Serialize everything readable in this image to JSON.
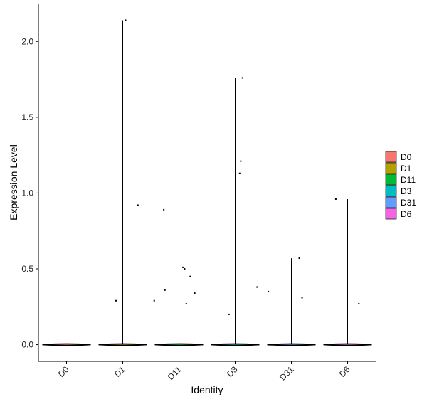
{
  "chart_data": {
    "type": "violin",
    "xlabel": "Identity",
    "ylabel": "Expression Level",
    "categories": [
      "D0",
      "D1",
      "D11",
      "D3",
      "D31",
      "D6"
    ],
    "yticks": [
      0.0,
      0.5,
      1.0,
      1.5,
      2.0
    ],
    "ytick_labels": [
      "0.0",
      "0.5",
      "1.0",
      "1.5",
      "2.0"
    ],
    "ylim": [
      -0.11,
      2.25
    ],
    "grid": false,
    "legend_position": "right",
    "colors": {
      "D0": "#F8766D",
      "D1": "#B79F00",
      "D11": "#00BA38",
      "D3": "#00BFC4",
      "D31": "#619CFF",
      "D6": "#F564E3"
    },
    "legend": [
      "D0",
      "D1",
      "D11",
      "D3",
      "D31",
      "D6"
    ],
    "violins": [
      {
        "name": "D0",
        "max": 0.0
      },
      {
        "name": "D1",
        "max": 2.14
      },
      {
        "name": "D11",
        "max": 0.89
      },
      {
        "name": "D3",
        "max": 1.76
      },
      {
        "name": "D31",
        "max": 0.57
      },
      {
        "name": "D6",
        "max": 0.96
      }
    ],
    "points": [
      {
        "category": "D1",
        "jitter": 0.05,
        "y": 2.14
      },
      {
        "category": "D1",
        "jitter": 0.27,
        "y": 0.92
      },
      {
        "category": "D1",
        "jitter": -0.12,
        "y": 0.29
      },
      {
        "category": "D11",
        "jitter": -0.27,
        "y": 0.89
      },
      {
        "category": "D11",
        "jitter": -0.25,
        "y": 0.36
      },
      {
        "category": "D11",
        "jitter": -0.44,
        "y": 0.29
      },
      {
        "category": "D11",
        "jitter": 0.07,
        "y": 0.51
      },
      {
        "category": "D11",
        "jitter": 0.1,
        "y": 0.5
      },
      {
        "category": "D11",
        "jitter": 0.2,
        "y": 0.45
      },
      {
        "category": "D11",
        "jitter": 0.28,
        "y": 0.34
      },
      {
        "category": "D11",
        "jitter": 0.13,
        "y": 0.27
      },
      {
        "category": "D3",
        "jitter": 0.13,
        "y": 1.76
      },
      {
        "category": "D3",
        "jitter": 0.1,
        "y": 1.21
      },
      {
        "category": "D3",
        "jitter": 0.08,
        "y": 1.13
      },
      {
        "category": "D3",
        "jitter": 0.39,
        "y": 0.38
      },
      {
        "category": "D3",
        "jitter": -0.11,
        "y": 0.2
      },
      {
        "category": "D31",
        "jitter": -0.41,
        "y": 0.35
      },
      {
        "category": "D31",
        "jitter": 0.14,
        "y": 0.57
      },
      {
        "category": "D31",
        "jitter": 0.19,
        "y": 0.31
      },
      {
        "category": "D6",
        "jitter": -0.21,
        "y": 0.96
      },
      {
        "category": "D6",
        "jitter": 0.2,
        "y": 0.27
      }
    ]
  }
}
